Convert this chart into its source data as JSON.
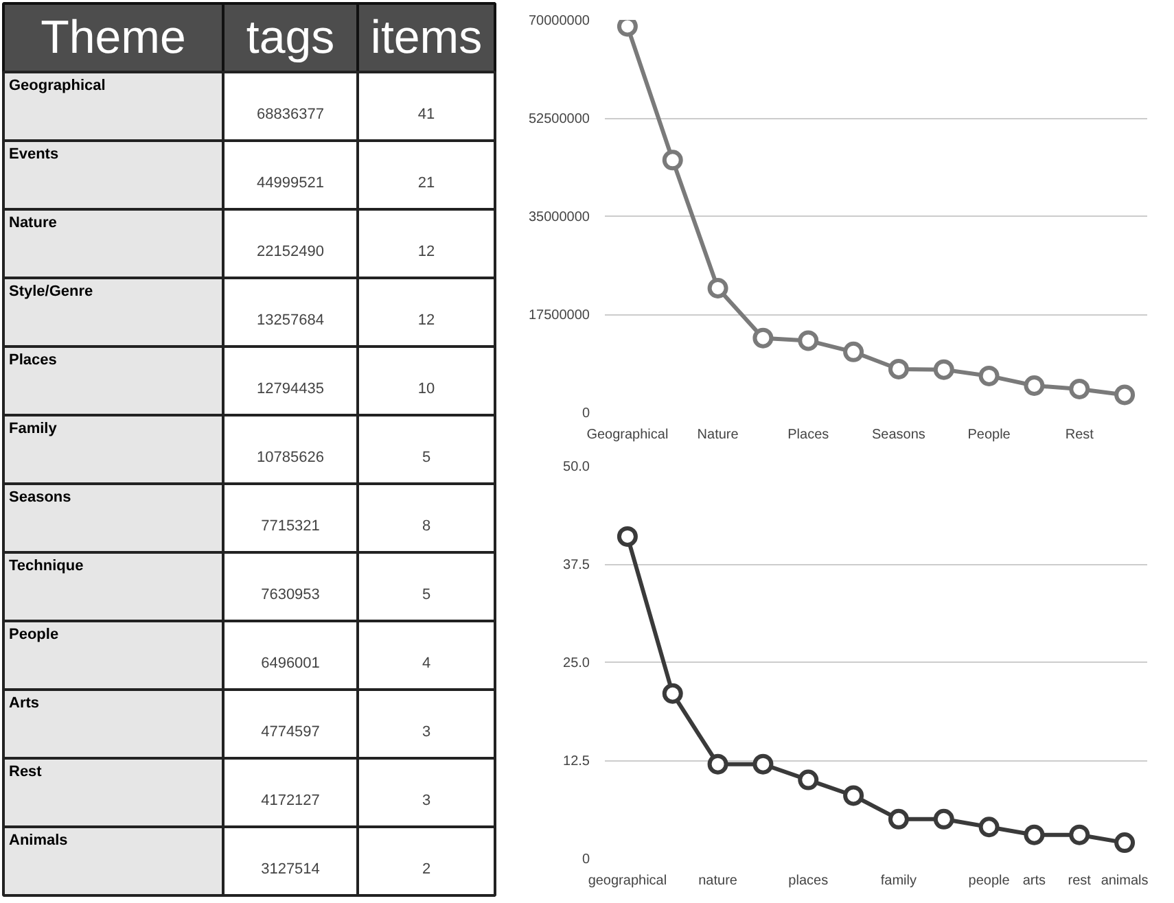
{
  "chart_data": [
    {
      "type": "other",
      "xlabel": "Theme",
      "data_labels": true,
      "categories": [
        "Geographical",
        "Events",
        "Nature",
        "Style/Genre",
        "Places",
        "Family",
        "Seasons",
        "Technique",
        "People",
        "Arts",
        "Rest",
        "Animals"
      ],
      "series": [
        {
          "name": "tags",
          "values": [
            68836377,
            44999521,
            22152490,
            13257684,
            12794435,
            10785626,
            7715321,
            7630953,
            6496001,
            4774597,
            4172127,
            3127514
          ]
        },
        {
          "name": "items",
          "values": [
            41,
            21,
            12,
            12,
            10,
            5,
            8,
            5,
            4,
            3,
            3,
            2
          ]
        }
      ]
    },
    {
      "type": "line",
      "categories": [
        "Geographical",
        null,
        "Nature",
        null,
        "Places",
        null,
        "Seasons",
        null,
        "People",
        null,
        "Rest",
        null
      ],
      "color": "#7a7a7a",
      "values": [
        68836377,
        44999521,
        22152490,
        13257684,
        12794435,
        10785626,
        7715321,
        7630953,
        6496001,
        4774597,
        4172127,
        3127514
      ],
      "ylim": [
        0,
        70000000
      ],
      "yticks": [
        0,
        17500000,
        35000000,
        52500000,
        70000000
      ],
      "grid": "y",
      "marker": "circle"
    },
    {
      "type": "line",
      "categories": [
        "geographical",
        null,
        "nature",
        null,
        "places",
        null,
        "family",
        null,
        "people",
        "arts",
        "rest",
        "animals"
      ],
      "color": "#3a3a3a",
      "values": [
        41,
        21,
        12,
        12,
        10,
        8,
        5,
        5,
        4,
        3,
        3,
        2
      ],
      "ylim": [
        0,
        50
      ],
      "yticks": [
        0,
        {
          "value": 12.5,
          "label": "12.5"
        },
        {
          "value": 25,
          "label": "25.0"
        },
        {
          "value": 37.5,
          "label": "37.5"
        },
        {
          "value": 50,
          "label": "50.0"
        }
      ],
      "grid": "y",
      "marker": "circle"
    }
  ]
}
